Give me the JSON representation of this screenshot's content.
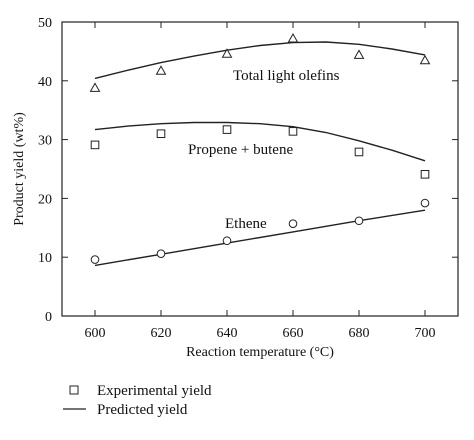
{
  "chart_data": {
    "type": "scatter",
    "title": "",
    "xlabel": "Reaction temperature (°C)",
    "ylabel": "Product yield (wt%)",
    "xlim": [
      590,
      710
    ],
    "ylim": [
      0,
      50
    ],
    "xticks": [
      600,
      620,
      640,
      660,
      680,
      700
    ],
    "yticks": [
      0,
      10,
      20,
      30,
      40,
      50
    ],
    "x": [
      600,
      620,
      640,
      660,
      680,
      700
    ],
    "grid": false,
    "legend_position": "bottom-left",
    "series": [
      {
        "name": "Total light olefins",
        "marker": "triangle",
        "experimental": [
          38.8,
          41.7,
          44.6,
          47.2,
          44.4,
          43.5
        ],
        "predicted_x": [
          600,
          610,
          620,
          630,
          640,
          650,
          660,
          670,
          680,
          690,
          700
        ],
        "predicted": [
          40.4,
          41.8,
          43.1,
          44.2,
          45.2,
          46.0,
          46.5,
          46.6,
          46.2,
          45.4,
          44.4
        ]
      },
      {
        "name": "Propene + butene",
        "marker": "square",
        "experimental": [
          29.1,
          31.0,
          31.7,
          31.4,
          27.9,
          24.1
        ],
        "predicted_x": [
          600,
          610,
          620,
          630,
          640,
          650,
          660,
          670,
          680,
          690,
          700
        ],
        "predicted": [
          31.7,
          32.3,
          32.7,
          32.9,
          32.9,
          32.7,
          32.2,
          31.2,
          29.8,
          28.2,
          26.4
        ]
      },
      {
        "name": "Ethene",
        "marker": "circle",
        "experimental": [
          9.6,
          10.6,
          12.8,
          15.7,
          16.2,
          19.2
        ],
        "predicted_x": [
          600,
          620,
          640,
          660,
          680,
          700
        ],
        "predicted": [
          8.6,
          10.5,
          12.4,
          14.3,
          16.2,
          18.0
        ]
      }
    ],
    "legend": [
      {
        "symbol": "square",
        "label": "Experimental yield"
      },
      {
        "symbol": "line",
        "label": "Predicted yield"
      }
    ]
  }
}
